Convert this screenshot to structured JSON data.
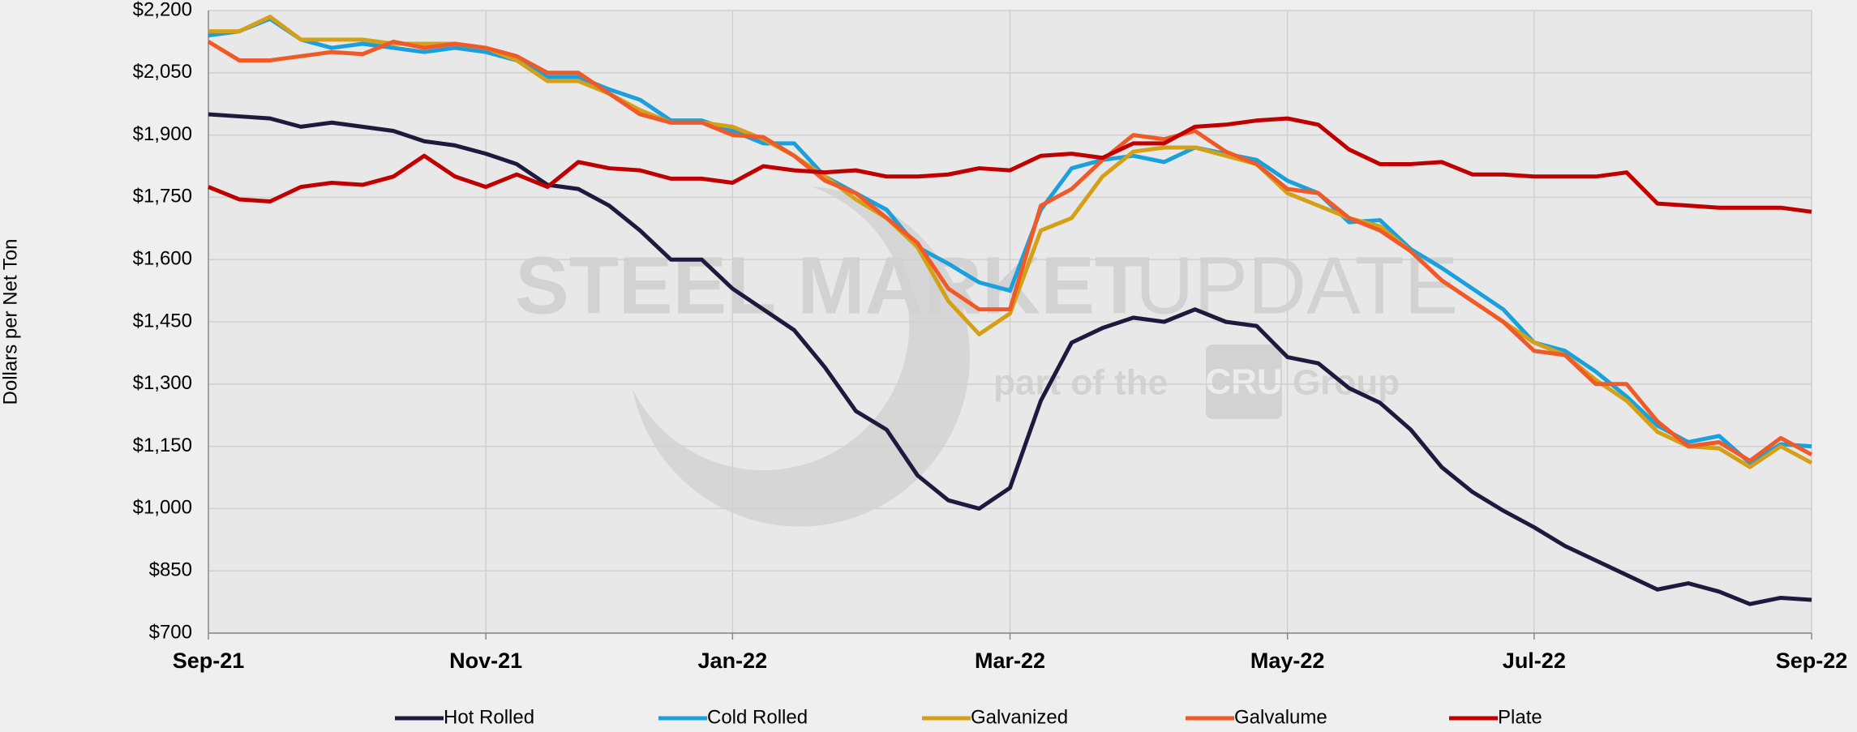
{
  "chart_data": {
    "type": "line",
    "y_label": "Dollars per Net Ton",
    "watermark": {
      "title_bold": "STEEL MARKET",
      "title_light": "UPDATE",
      "prefix": "part of the",
      "logo": "CRU",
      "suffix": "Group"
    },
    "categories": [
      "Sep-21",
      null,
      null,
      null,
      null,
      null,
      null,
      null,
      null,
      "Nov-21",
      null,
      null,
      null,
      null,
      null,
      null,
      null,
      "Jan-22",
      null,
      null,
      null,
      null,
      null,
      null,
      null,
      null,
      "Mar-22",
      null,
      null,
      null,
      null,
      null,
      null,
      null,
      null,
      "May-22",
      null,
      null,
      null,
      null,
      null,
      null,
      null,
      "Jul-22",
      null,
      null,
      null,
      null,
      null,
      null,
      null,
      null,
      "Sep-22"
    ],
    "series": [
      {
        "name": "Hot Rolled",
        "color": "#1f1a3d",
        "values": [
          1950,
          1945,
          1940,
          1920,
          1930,
          1920,
          1910,
          1885,
          1875,
          1855,
          1830,
          1780,
          1770,
          1730,
          1670,
          1600,
          1600,
          1530,
          1480,
          1430,
          1340,
          1235,
          1190,
          1080,
          1020,
          1000,
          1050,
          1260,
          1400,
          1435,
          1460,
          1450,
          1480,
          1450,
          1440,
          1365,
          1350,
          1290,
          1255,
          1190,
          1100,
          1040,
          995,
          955,
          910,
          875,
          840,
          805,
          820,
          800,
          770,
          785,
          780
        ]
      },
      {
        "name": "Cold Rolled",
        "color": "#1aa0dc",
        "values": [
          2140,
          2150,
          2180,
          2130,
          2110,
          2120,
          2110,
          2100,
          2110,
          2100,
          2080,
          2040,
          2040,
          2010,
          1985,
          1935,
          1935,
          1910,
          1880,
          1880,
          1800,
          1760,
          1720,
          1630,
          1590,
          1545,
          1525,
          1720,
          1820,
          1840,
          1850,
          1835,
          1870,
          1855,
          1840,
          1790,
          1760,
          1690,
          1695,
          1625,
          1580,
          1530,
          1480,
          1400,
          1380,
          1330,
          1270,
          1200,
          1160,
          1175,
          1110,
          1155,
          1150
        ]
      },
      {
        "name": "Galvanized",
        "color": "#d4a017",
        "values": [
          2150,
          2150,
          2185,
          2130,
          2130,
          2130,
          2120,
          2120,
          2120,
          2110,
          2080,
          2030,
          2030,
          2000,
          1960,
          1930,
          1930,
          1920,
          1890,
          1850,
          1800,
          1745,
          1700,
          1630,
          1500,
          1420,
          1470,
          1670,
          1700,
          1800,
          1860,
          1870,
          1870,
          1850,
          1830,
          1760,
          1730,
          1700,
          1680,
          1620,
          1550,
          1500,
          1450,
          1400,
          1370,
          1310,
          1260,
          1185,
          1150,
          1145,
          1100,
          1150,
          1110
        ]
      },
      {
        "name": "Galvalume",
        "color": "#f05a28",
        "values": [
          2125,
          2080,
          2080,
          2090,
          2100,
          2095,
          2125,
          2110,
          2120,
          2110,
          2090,
          2050,
          2050,
          2000,
          1950,
          1930,
          1930,
          1900,
          1895,
          1850,
          1790,
          1760,
          1700,
          1640,
          1530,
          1480,
          1480,
          1730,
          1770,
          1840,
          1900,
          1890,
          1910,
          1860,
          1830,
          1770,
          1760,
          1700,
          1670,
          1620,
          1550,
          1500,
          1450,
          1380,
          1370,
          1300,
          1300,
          1210,
          1150,
          1160,
          1115,
          1170,
          1130
        ]
      },
      {
        "name": "Plate",
        "color": "#c00000",
        "values": [
          1775,
          1745,
          1740,
          1775,
          1785,
          1780,
          1800,
          1850,
          1800,
          1775,
          1805,
          1775,
          1835,
          1820,
          1815,
          1795,
          1795,
          1785,
          1825,
          1815,
          1810,
          1815,
          1800,
          1800,
          1805,
          1820,
          1815,
          1850,
          1855,
          1845,
          1880,
          1880,
          1920,
          1925,
          1935,
          1940,
          1925,
          1865,
          1830,
          1830,
          1835,
          1805,
          1805,
          1800,
          1800,
          1800,
          1810,
          1735,
          1730,
          1725,
          1725,
          1725,
          1715
        ]
      }
    ],
    "ylim": [
      700,
      2200
    ],
    "yticks": [
      {
        "value": 700,
        "label": "$700"
      },
      {
        "value": 850,
        "label": "$850"
      },
      {
        "value": 1000,
        "label": "$1,000"
      },
      {
        "value": 1150,
        "label": "$1,150"
      },
      {
        "value": 1300,
        "label": "$1,300"
      },
      {
        "value": 1450,
        "label": "$1,450"
      },
      {
        "value": 1600,
        "label": "$1,600"
      },
      {
        "value": 1750,
        "label": "$1,750"
      },
      {
        "value": 1900,
        "label": "$1,900"
      },
      {
        "value": 2050,
        "label": "$2,050"
      },
      {
        "value": 2200,
        "label": "$2,200"
      }
    ],
    "grid": true,
    "legend": "bottom"
  }
}
